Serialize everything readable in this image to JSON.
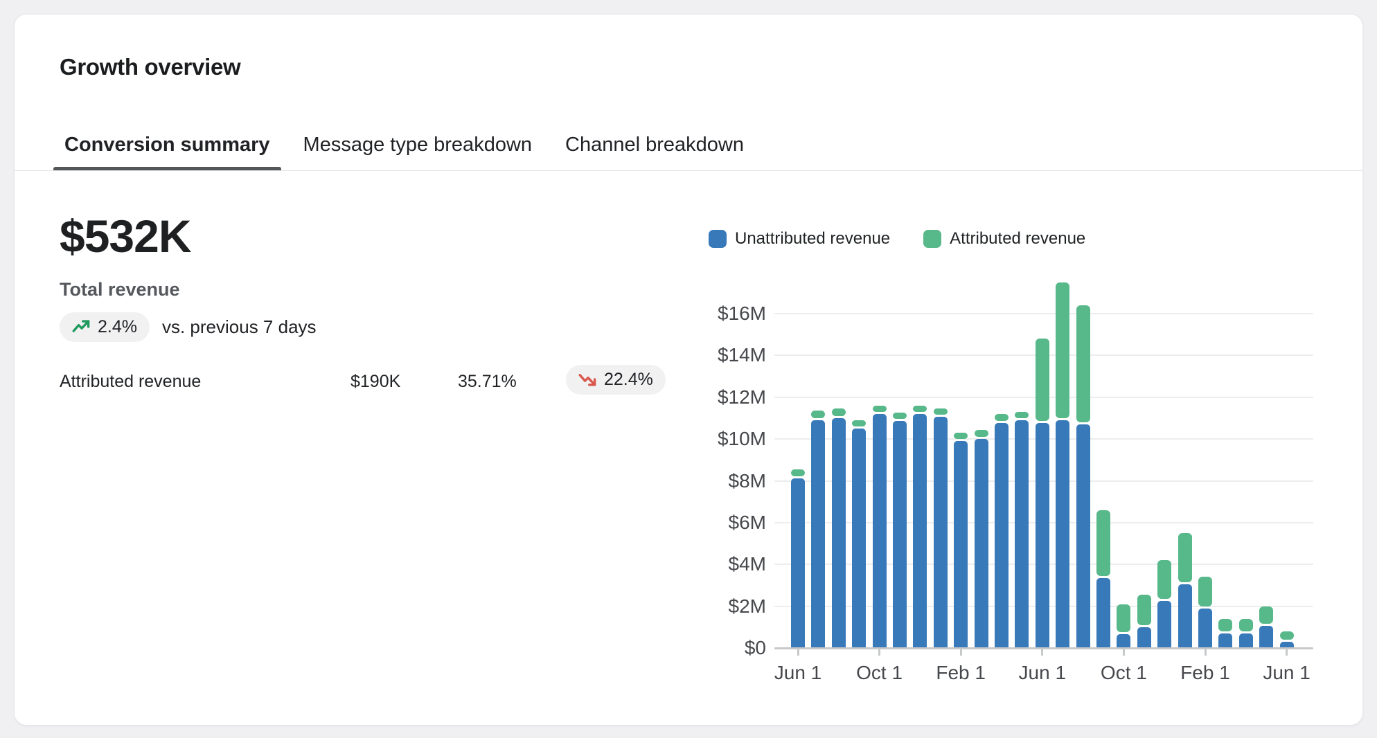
{
  "page": {
    "title": "Growth overview"
  },
  "tabs": [
    {
      "label": "Conversion summary",
      "active": true
    },
    {
      "label": "Message type breakdown",
      "active": false
    },
    {
      "label": "Channel breakdown",
      "active": false
    }
  ],
  "summary": {
    "total_value": "$532K",
    "total_label": "Total revenue",
    "change_badge": "2.4%",
    "change_direction": "up",
    "compare_text": "vs. previous 7 days",
    "attributed_row": {
      "label": "Attributed revenue",
      "value": "$190K",
      "share": "35.71%",
      "change_badge": "22.4%",
      "change_direction": "down"
    }
  },
  "colors": {
    "unattributed_blue": "#3879b9",
    "attributed_green": "#57b88a",
    "badge_up_arrow": "#1f9a5d",
    "badge_down_arrow": "#d9574c",
    "axis_text": "#46484c",
    "gridline": "#eceded"
  },
  "chart_data": {
    "type": "bar",
    "stacked": true,
    "title": "Revenue by month, stacked unattributed + attributed",
    "unit": "USD millions",
    "bar_count": 25,
    "series": [
      {
        "name": "Unattributed revenue",
        "color": "#3879b9",
        "values": [
          8.1,
          10.9,
          11.0,
          10.5,
          11.2,
          10.85,
          11.2,
          11.05,
          9.9,
          10.0,
          10.75,
          10.9,
          10.75,
          10.9,
          10.7,
          3.35,
          0.65,
          1.0,
          2.25,
          3.05,
          1.9,
          0.7,
          0.7,
          1.05,
          0.3
        ]
      },
      {
        "name": "Attributed revenue",
        "color": "#57b88a",
        "values": [
          0.45,
          0.45,
          0.45,
          0.4,
          0.4,
          0.4,
          0.4,
          0.4,
          0.4,
          0.45,
          0.45,
          0.4,
          4.05,
          6.6,
          5.7,
          3.25,
          1.45,
          1.55,
          1.95,
          2.45,
          1.5,
          0.7,
          0.7,
          0.95,
          0.5
        ]
      }
    ],
    "y_ticks": [
      "$0",
      "$2M",
      "$4M",
      "$6M",
      "$8M",
      "$10M",
      "$12M",
      "$14M",
      "$16M"
    ],
    "ylim": [
      0,
      16
    ],
    "gridline_step_millions": 2,
    "x_tick_labels": [
      "Jun 1",
      "Oct 1",
      "Feb 1",
      "Jun 1",
      "Oct 1",
      "Feb 1",
      "Jun 1"
    ],
    "x_tick_indices": [
      0,
      4,
      8,
      12,
      16,
      20,
      24
    ],
    "grid": true,
    "legend_position": "top-right"
  }
}
